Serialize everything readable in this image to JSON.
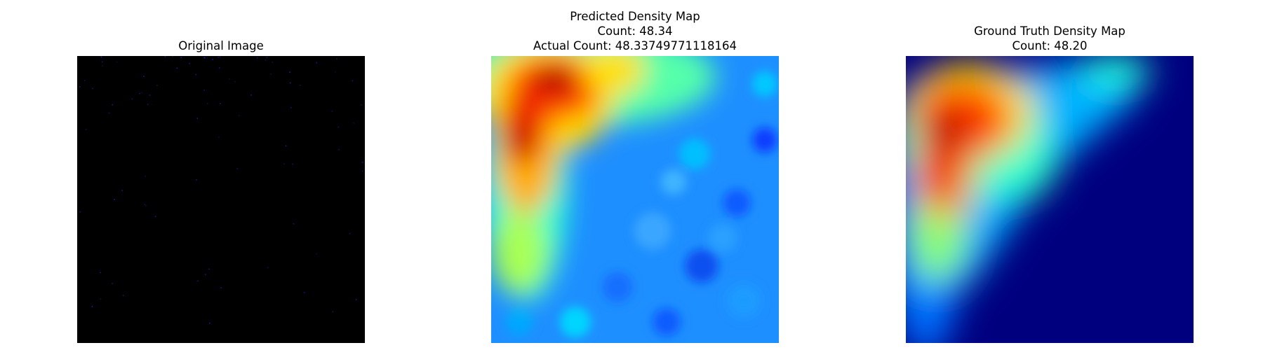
{
  "figure": {
    "panels": [
      {
        "title_lines": [
          "Original Image"
        ]
      },
      {
        "title_lines": [
          "Predicted Density Map",
          "Count: 48.34",
          "Actual Count: 48.33749771118164"
        ]
      },
      {
        "title_lines": [
          "Ground Truth Density Map",
          "Count: 48.20"
        ]
      }
    ]
  },
  "chart_data": [
    {
      "type": "heatmap",
      "title": "Original Image",
      "background_color": "#000000",
      "description_colors": {
        "speckle": "#1f1fa8"
      }
    },
    {
      "type": "heatmap",
      "title": "Predicted Density Map",
      "colormap": "jet",
      "count": 48.34,
      "actual_count": 48.33749771118164
    },
    {
      "type": "heatmap",
      "title": "Ground Truth Density Map",
      "colormap": "jet",
      "count": 48.2
    }
  ]
}
